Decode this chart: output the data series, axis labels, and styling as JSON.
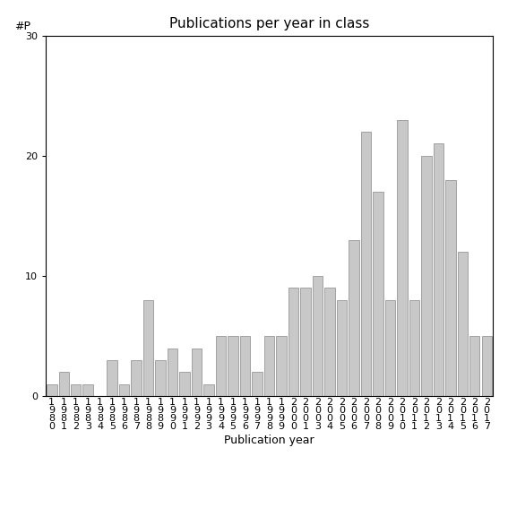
{
  "title": "Publications per year in class",
  "xlabel": "Publication year",
  "ylabel_text": "#P",
  "bar_color": "#c8c8c8",
  "bar_edge_color": "#888888",
  "ylim": [
    0,
    30
  ],
  "yticks": [
    0,
    10,
    20,
    30
  ],
  "years": [
    "1980",
    "1981",
    "1982",
    "1983",
    "1984",
    "1985",
    "1986",
    "1987",
    "1988",
    "1989",
    "1990",
    "1991",
    "1992",
    "1993",
    "1994",
    "1995",
    "1996",
    "1997",
    "1998",
    "1999",
    "2000",
    "2001",
    "2003",
    "2004",
    "2005",
    "2006",
    "2007",
    "2008",
    "2009",
    "2010",
    "2011",
    "2012",
    "2013",
    "2014",
    "2015",
    "2016",
    "2017"
  ],
  "values": [
    1,
    2,
    1,
    1,
    0,
    3,
    1,
    3,
    8,
    3,
    4,
    2,
    4,
    1,
    5,
    5,
    5,
    2,
    5,
    5,
    9,
    9,
    10,
    9,
    8,
    13,
    22,
    17,
    8,
    23,
    8,
    20,
    21,
    18,
    12,
    5,
    5
  ],
  "background_color": "#ffffff",
  "tick_fontsize": 8,
  "title_fontsize": 11,
  "xlabel_fontsize": 9
}
